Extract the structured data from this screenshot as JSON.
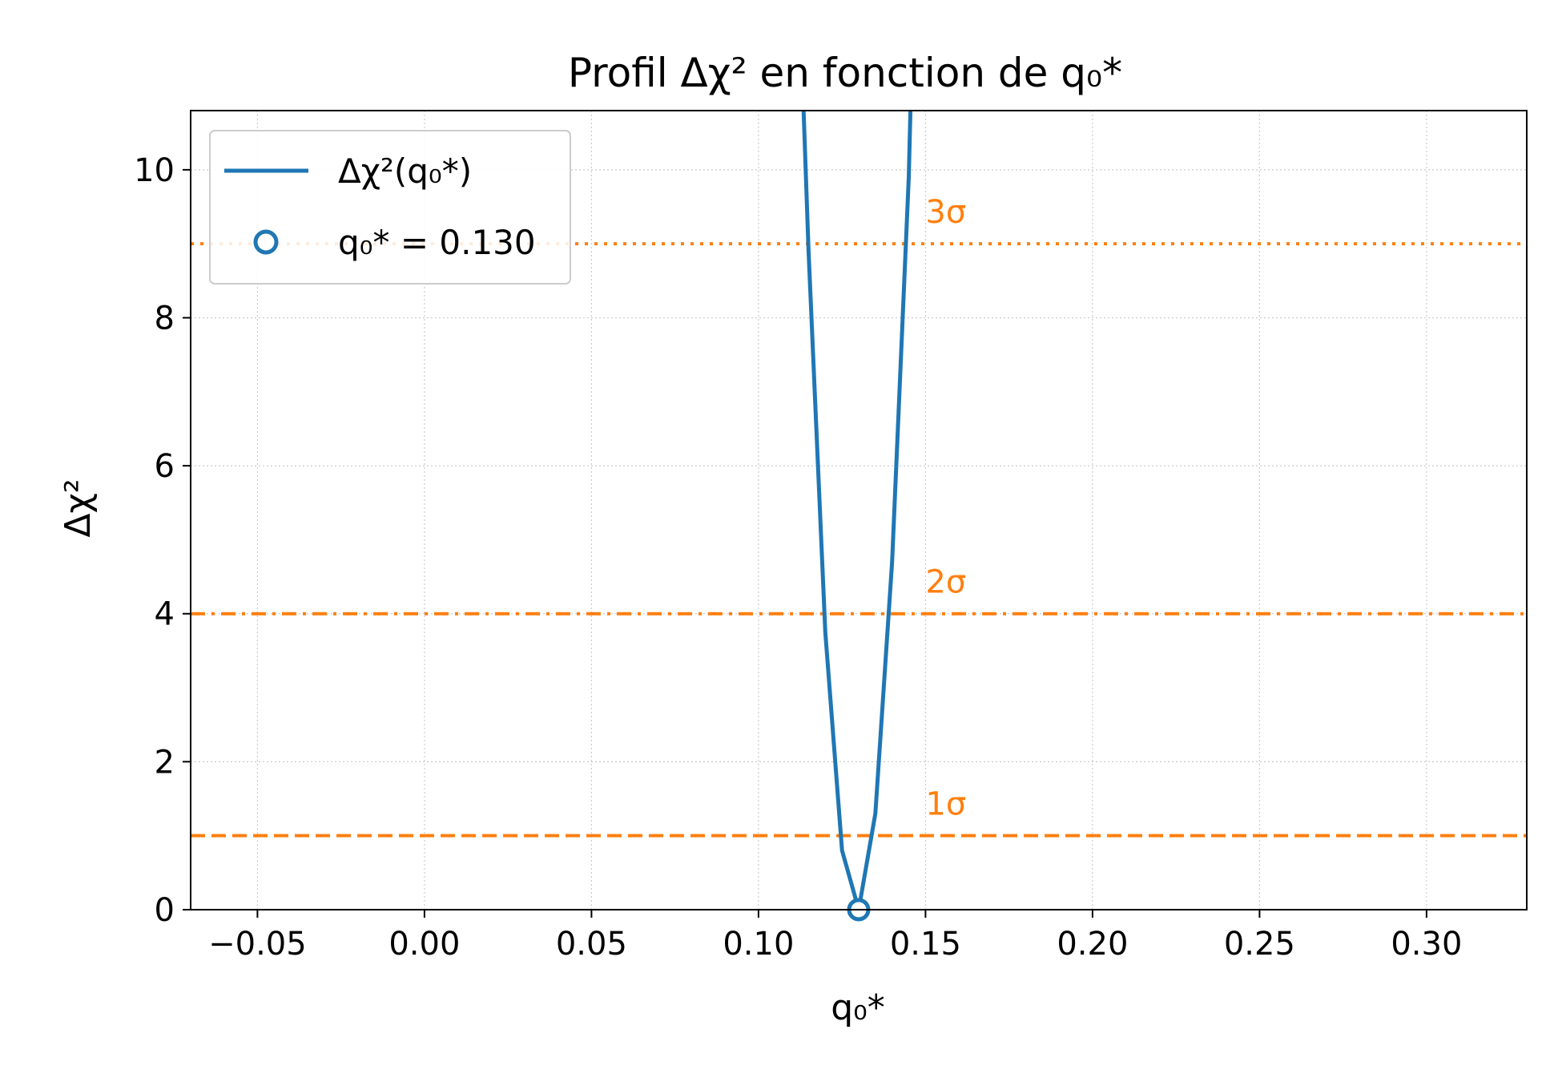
{
  "chart_data": {
    "type": "line",
    "title": "Profil Δχ² en fonction de q₀*",
    "xlabel": "q₀*",
    "ylabel": "Δχ²",
    "xlim": [
      -0.07,
      0.33
    ],
    "ylim": [
      0,
      10.8
    ],
    "xticks": [
      -0.05,
      0.0,
      0.05,
      0.1,
      0.15,
      0.2,
      0.25,
      0.3
    ],
    "xtick_labels": [
      "−0.05",
      "0.00",
      "0.05",
      "0.10",
      "0.15",
      "0.20",
      "0.25",
      "0.30"
    ],
    "yticks": [
      0,
      2,
      4,
      6,
      8,
      10
    ],
    "ytick_labels": [
      "0",
      "2",
      "4",
      "6",
      "8",
      "10"
    ],
    "grid": true,
    "legend_position": "upper-left",
    "series": [
      {
        "name": "Δχ²(q₀*)",
        "color": "#1f77b4",
        "x": [
          0.1135,
          0.115,
          0.12,
          0.125,
          0.13,
          0.135,
          0.14,
          0.145,
          0.1455
        ],
        "y": [
          10.8,
          8.9,
          3.75,
          0.8,
          0.0,
          1.3,
          4.7,
          9.9,
          10.8
        ]
      }
    ],
    "best_fit": {
      "label": "q₀* = 0.130",
      "x": 0.13,
      "y": 0.0,
      "color": "#1f77b4"
    },
    "reference_lines": [
      {
        "y": 1,
        "label": "1σ",
        "style": "dashed",
        "color": "#ff7f0e",
        "label_x": 0.15
      },
      {
        "y": 4,
        "label": "2σ",
        "style": "dashdot",
        "color": "#ff7f0e",
        "label_x": 0.15
      },
      {
        "y": 9,
        "label": "3σ",
        "style": "dotted",
        "color": "#ff7f0e",
        "label_x": 0.15
      }
    ]
  }
}
